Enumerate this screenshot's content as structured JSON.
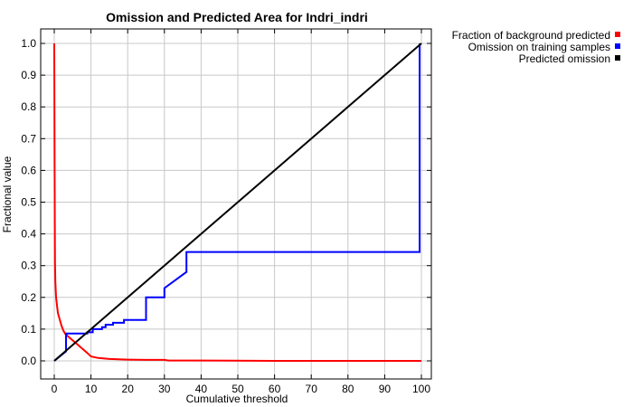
{
  "chart_data": {
    "type": "line",
    "title": "Omission and Predicted Area for Indri_indri",
    "xlabel": "Cumulative threshold",
    "ylabel": "Fractional value",
    "xlim": [
      0,
      100
    ],
    "ylim": [
      0,
      1.0
    ],
    "xticks": [
      "0",
      "10",
      "20",
      "30",
      "40",
      "50",
      "60",
      "70",
      "80",
      "90",
      "100"
    ],
    "yticks": [
      "0.0",
      "0.1",
      "0.2",
      "0.3",
      "0.4",
      "0.5",
      "0.6",
      "0.7",
      "0.8",
      "0.9",
      "1.0"
    ],
    "grid": true,
    "legend_position": "outside-top-right",
    "series": [
      {
        "name": "Fraction of background predicted",
        "color": "#ff0000",
        "x": [
          0,
          0.1,
          0.2,
          0.3,
          0.5,
          0.8,
          1,
          1.5,
          2,
          2.5,
          3,
          4,
          5,
          6,
          7,
          8,
          9,
          10,
          12,
          15,
          20,
          25,
          30,
          31,
          40,
          60,
          80,
          100
        ],
        "y": [
          1.0,
          0.6,
          0.31,
          0.25,
          0.2,
          0.17,
          0.15,
          0.13,
          0.11,
          0.095,
          0.085,
          0.075,
          0.065,
          0.055,
          0.045,
          0.035,
          0.025,
          0.014,
          0.009,
          0.006,
          0.004,
          0.003,
          0.003,
          0.001,
          0.001,
          0.0,
          0.0,
          0.0
        ]
      },
      {
        "name": "Omission on training samples",
        "color": "#0000ff",
        "x": [
          0,
          3.2,
          3.2,
          9,
          9,
          10.5,
          10.5,
          13,
          13,
          14,
          14,
          16,
          16,
          19,
          19,
          25,
          25,
          30,
          30,
          36,
          36,
          99.5,
          99.5
        ],
        "y": [
          0,
          0.03,
          0.086,
          0.086,
          0.09,
          0.09,
          0.1,
          0.1,
          0.106,
          0.106,
          0.114,
          0.114,
          0.12,
          0.12,
          0.129,
          0.129,
          0.2,
          0.2,
          0.229,
          0.28,
          0.343,
          0.343,
          1.0
        ]
      },
      {
        "name": "Predicted omission",
        "color": "#000000",
        "x": [
          0,
          100
        ],
        "y": [
          0,
          1.0
        ]
      }
    ]
  }
}
